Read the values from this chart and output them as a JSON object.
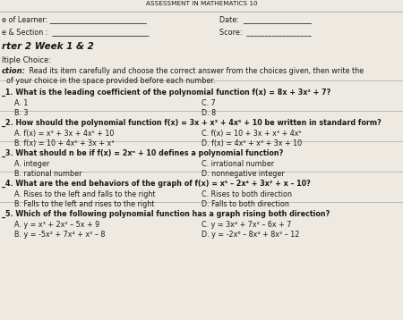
{
  "background_color": "#eeeae2",
  "title": "ASSESSMENT IN MATHEMATICS 10",
  "header_left1": "e of Learner: ___________________________",
  "header_left2": "e & Section :  ___________________________",
  "header_right1": "Date:  ___________________",
  "header_right2": "Score:  __________________",
  "section_title": "rter 2 Week 1 & 2",
  "section_type": "ltiple Choice:",
  "instruction_bold": "ction:",
  "instruction_rest": " Read its item carefully and choose the correct answer from the choices given, then write the",
  "instruction2": "  of your choice in the space provided before each number.",
  "questions": [
    {
      "num": "_1.",
      "text": "What is the leading coefficient of the polynomial function f(x) = 8x + 3x² + 7?",
      "bold": true,
      "cl": [
        "A. 1",
        "B. 3"
      ],
      "cr": [
        "C. 7",
        "D. 8"
      ]
    },
    {
      "num": "_2.",
      "text": "How should the polynomial function f(x) = 3x + x³ + 4x⁵ + 10 be written in standard form?",
      "bold": true,
      "cl": [
        "A. f(x) = x³ + 3x + 4x⁵ + 10",
        "B. f(x) = 10 + 4x⁵ + 3x + x³"
      ],
      "cr": [
        "C. f(x) = 10 + 3x + x³ + 4x⁵",
        "D. f(x) = 4x⁵ + x³ + 3x + 10"
      ]
    },
    {
      "num": "_3.",
      "text": "What should n be if f(x) = 2xⁿ + 10 defines a polynomial function?",
      "bold": true,
      "cl": [
        "A. integer",
        "B. rational number"
      ],
      "cr": [
        "C. irrational number",
        "D. nonnegative integer"
      ]
    },
    {
      "num": "_4.",
      "text": "What are the end behaviors of the graph of f(x) = x⁵ – 2x⁴ + 3x² + x – 10?",
      "bold": true,
      "cl": [
        "A. Rises to the left and falls to the right",
        "B. Falls to the left and rises to the right"
      ],
      "cr": [
        "C. Rises to both direction",
        "D. Falls to both direction"
      ]
    },
    {
      "num": "_5.",
      "text": "Which of the following polynomial function has a graph rising both direction?",
      "bold": true,
      "cl": [
        "A. y = x³ + 2x² – 5x + 9",
        "B. y = -5x² + 7x⁴ + x² – 8"
      ],
      "cr": [
        "C. y = 3x⁴ + 7x² – 6x + 7",
        "D. y = -2x⁶ – 8x⁴ + 8x² – 12"
      ]
    }
  ],
  "text_color": "#1a1a1a",
  "line_color": "#999999"
}
